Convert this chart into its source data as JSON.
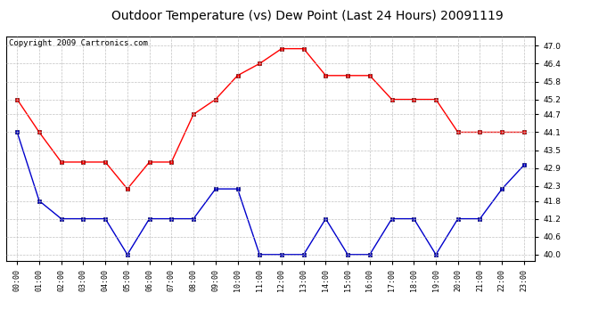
{
  "title": "Outdoor Temperature (vs) Dew Point (Last 24 Hours) 20091119",
  "copyright": "Copyright 2009 Cartronics.com",
  "x_labels": [
    "00:00",
    "01:00",
    "02:00",
    "03:00",
    "04:00",
    "05:00",
    "06:00",
    "07:00",
    "08:00",
    "09:00",
    "10:00",
    "11:00",
    "12:00",
    "13:00",
    "14:00",
    "15:00",
    "16:00",
    "17:00",
    "18:00",
    "19:00",
    "20:00",
    "21:00",
    "22:00",
    "23:00"
  ],
  "red_data": [
    45.2,
    44.1,
    43.1,
    43.1,
    43.1,
    42.2,
    43.1,
    43.1,
    44.7,
    45.2,
    46.0,
    46.4,
    46.9,
    46.9,
    46.0,
    46.0,
    46.0,
    45.2,
    45.2,
    45.2,
    44.1,
    44.1,
    44.1,
    44.1
  ],
  "blue_data": [
    44.1,
    41.8,
    41.2,
    41.2,
    41.2,
    40.0,
    41.2,
    41.2,
    41.2,
    42.2,
    42.2,
    40.0,
    40.0,
    40.0,
    41.2,
    40.0,
    40.0,
    41.2,
    41.2,
    40.0,
    41.2,
    41.2,
    42.2,
    43.0
  ],
  "ylim": [
    39.8,
    47.3
  ],
  "yticks": [
    40.0,
    40.6,
    41.2,
    41.8,
    42.3,
    42.9,
    43.5,
    44.1,
    44.7,
    45.2,
    45.8,
    46.4,
    47.0
  ],
  "red_color": "#ff0000",
  "blue_color": "#0000cc",
  "bg_color": "#ffffff",
  "grid_color": "#bbbbbb",
  "title_color": "#000000",
  "title_fontsize": 10,
  "copyright_fontsize": 6.5
}
